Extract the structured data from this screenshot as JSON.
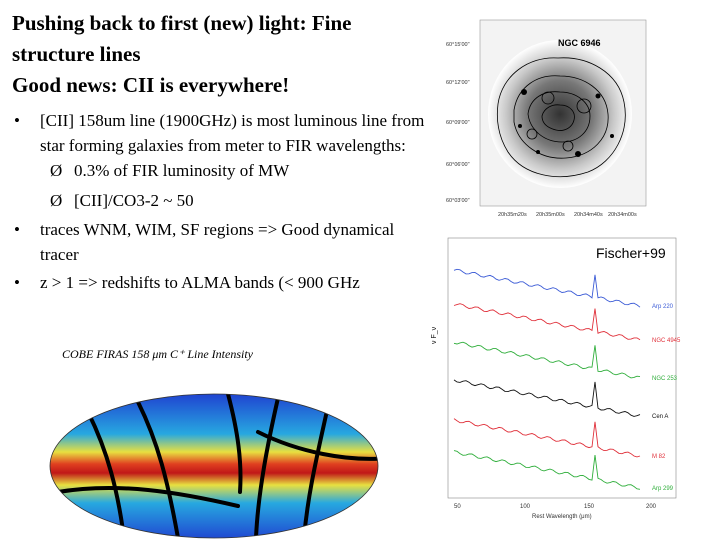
{
  "slide": {
    "title_line1": "Pushing back to first (new) light: Fine",
    "title_line2": "structure lines",
    "title_line3": "Good news: CII is everywhere!",
    "bullets": [
      {
        "text": "[CII] 158um line (1900GHz) is most luminous line from star forming galaxies from meter to FIR wavelengths:"
      },
      {
        "text": "0.3% of FIR luminosity of MW"
      },
      {
        "text": "[CII]/CO3-2 ~ 50"
      },
      {
        "text": "traces WNM, WIM,  SF regions => Good dynamical tracer"
      },
      {
        "text": "z > 1 => redshifts to ALMA bands (< 900 GHz"
      }
    ],
    "bullet_glyph": "•",
    "sub_glyph": "Ø"
  },
  "ngc_image": {
    "label": "NGC 6946",
    "dec_ticks": [
      "60°15'00\"",
      "60°12'00\"",
      "60°09'00\"",
      "60°06'00\"",
      "60°03'00\""
    ],
    "ra_ticks": [
      "20h35m20s",
      "20h35m00s",
      "20h34m40s",
      "20h34m00s"
    ]
  },
  "spectra": {
    "label": "Fischer+99",
    "ylabel": "ν F_ν",
    "xlabel": "Rest Wavelength (μm)",
    "xticks": [
      "50",
      "100",
      "150",
      "200"
    ],
    "series": [
      {
        "name": "Arp 220",
        "color": "#3b5bd6"
      },
      {
        "name": "NGC 4945",
        "color": "#e0303a"
      },
      {
        "name": "NGC 253",
        "color": "#2fae3b"
      },
      {
        "name": "Cen A",
        "color": "#111111"
      },
      {
        "name": "M 82",
        "color": "#e0303a"
      },
      {
        "name": "Arp 299",
        "color": "#2fae3b"
      }
    ]
  },
  "cobe_map": {
    "title": "COBE FIRAS 158 μm C⁺ Line Intensity"
  }
}
